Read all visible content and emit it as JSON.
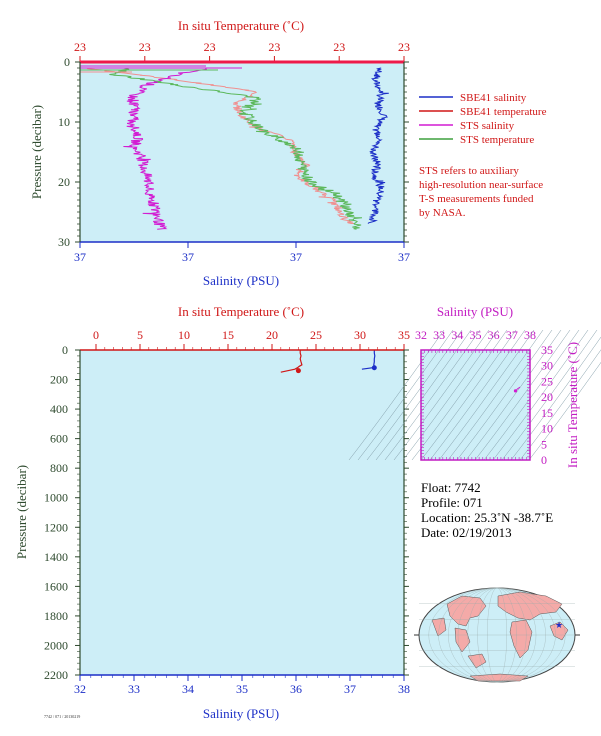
{
  "top_chart": {
    "x2label": "In situ Temperature (˚C)",
    "xlabel": "Salinity (PSU)",
    "ylabel": "Pressure (decibar)",
    "temp_ticks": [
      "23",
      "23",
      "23",
      "23",
      "23",
      "23"
    ],
    "sal_ticks": [
      "37",
      "37",
      "37",
      "37"
    ],
    "p_ticks": [
      "0",
      "10",
      "20",
      "30"
    ]
  },
  "legend": {
    "items": [
      {
        "label": "SBE41 salinity",
        "color": "#1c2fc7"
      },
      {
        "label": "SBE41 temperature",
        "color": "#d01717"
      },
      {
        "label": "STS salinity",
        "color": "#d21cd2"
      },
      {
        "label": "STS temperature",
        "color": "#3fa03f"
      }
    ],
    "note": [
      "STS refers to auxiliary",
      "high-resolution near-surface",
      "T-S measurements funded",
      "by NASA."
    ]
  },
  "bottom_chart": {
    "x2label": "In situ Temperature (˚C)",
    "xlabel": "Salinity (PSU)",
    "ylabel": "Pressure (decibar)",
    "temp_ticks": [
      "0",
      "5",
      "10",
      "15",
      "20",
      "25",
      "30",
      "35"
    ],
    "sal_ticks": [
      "32",
      "33",
      "34",
      "35",
      "36",
      "37",
      "38"
    ],
    "p_ticks": [
      "0",
      "200",
      "400",
      "600",
      "800",
      "1000",
      "1200",
      "1400",
      "1600",
      "1800",
      "2000",
      "2200"
    ]
  },
  "ts_chart": {
    "xlabel": "Salinity (PSU)",
    "ylabel": "In situ Temperature (˚C)",
    "sal_ticks": [
      "32",
      "33",
      "34",
      "35",
      "36",
      "37",
      "38"
    ],
    "temp_ticks": [
      "0",
      "5",
      "10",
      "15",
      "20",
      "25",
      "30",
      "35"
    ]
  },
  "info": {
    "float": "Float:  7742",
    "profile": "Profile:  071",
    "location": "Location:  25.3˚N  -38.7˚E",
    "date": "Date:  02/19/2013"
  },
  "footer_code": "7742 / 071 / 20130219",
  "colors": {
    "plot_bg": "#cdeef7",
    "temp_axis": "#d01717",
    "sal_axis": "#1c2fc7",
    "pressure_axis": "#2e4a2e",
    "ts_axis": "#c21cc2",
    "land": "#f4aaa8",
    "sea": "#cdeef7"
  },
  "chart_data": [
    {
      "type": "line",
      "title": "",
      "xlabel": "Salinity (PSU)",
      "x2label": "In situ Temperature (˚C)",
      "ylabel": "Pressure (decibar)",
      "ylim": [
        30,
        0
      ],
      "series": [
        {
          "name": "SBE41 salinity",
          "pressure": [
            1,
            3,
            5,
            7,
            9,
            11,
            13,
            15,
            17,
            19,
            21,
            23,
            25,
            27
          ],
          "salinity_rel": [
            0.93,
            0.91,
            0.93,
            0.92,
            0.94,
            0.91,
            0.93,
            0.9,
            0.92,
            0.91,
            0.93,
            0.92,
            0.91,
            0.9
          ]
        },
        {
          "name": "SBE41 temperature",
          "pressure": [
            1,
            3,
            5,
            7,
            9,
            11,
            13,
            15,
            17,
            19,
            21,
            23,
            25,
            27
          ],
          "temperature_rel": [
            0.02,
            0.3,
            0.55,
            0.48,
            0.5,
            0.55,
            0.65,
            0.66,
            0.7,
            0.67,
            0.72,
            0.78,
            0.8,
            0.83
          ]
        },
        {
          "name": "STS salinity",
          "pressure": [
            1,
            2,
            4,
            6,
            8,
            10,
            12,
            14,
            16,
            18,
            20,
            22,
            24,
            26,
            28
          ],
          "salinity_rel": [
            0.4,
            0.3,
            0.2,
            0.16,
            0.17,
            0.16,
            0.18,
            0.17,
            0.19,
            0.2,
            0.21,
            0.21,
            0.23,
            0.24,
            0.25
          ]
        },
        {
          "name": "STS temperature",
          "pressure": [
            1,
            2,
            4,
            6,
            8,
            10,
            12,
            14,
            16,
            18,
            20,
            22,
            24,
            26,
            28
          ],
          "temperature_rel": [
            0.15,
            0.1,
            0.32,
            0.55,
            0.51,
            0.53,
            0.58,
            0.66,
            0.68,
            0.69,
            0.71,
            0.79,
            0.82,
            0.84,
            0.86
          ]
        }
      ]
    },
    {
      "type": "line",
      "title": "",
      "xlabel": "Salinity (PSU)",
      "x2label": "In situ Temperature (˚C)",
      "ylabel": "Pressure (decibar)",
      "xlim": [
        32,
        38
      ],
      "x2lim": [
        0,
        35
      ],
      "ylim": [
        2200,
        0
      ],
      "series": [
        {
          "name": "SBE41 salinity",
          "pressure": [
            0,
            20,
            40,
            60,
            80,
            100,
            110,
            120,
            130
          ],
          "salinity": [
            37.45,
            37.45,
            37.46,
            37.45,
            37.45,
            37.44,
            37.45,
            37.42,
            37.22
          ]
        },
        {
          "name": "SBE41 temperature",
          "pressure": [
            0,
            20,
            40,
            60,
            80,
            100,
            110,
            120,
            130,
            140,
            150
          ],
          "temperature": [
            23.2,
            23.2,
            23.3,
            23.2,
            23.3,
            23.4,
            23.1,
            22.9,
            22.6,
            21.8,
            21.0
          ]
        },
        {
          "name": "salinity marker",
          "pressure": [
            120
          ],
          "salinity": [
            37.45
          ]
        },
        {
          "name": "temperature marker",
          "pressure": [
            140
          ],
          "temperature": [
            23.0
          ]
        }
      ]
    },
    {
      "type": "scatter",
      "title": "",
      "xlabel": "Salinity (PSU)",
      "ylabel": "In situ Temperature (˚C)",
      "xlim": [
        32,
        38
      ],
      "ylim": [
        0,
        35
      ],
      "series": [
        {
          "name": "T-S",
          "salinity": [
            37.2,
            37.3,
            37.45
          ],
          "temperature": [
            21.8,
            22.6,
            23.2
          ]
        }
      ]
    }
  ]
}
